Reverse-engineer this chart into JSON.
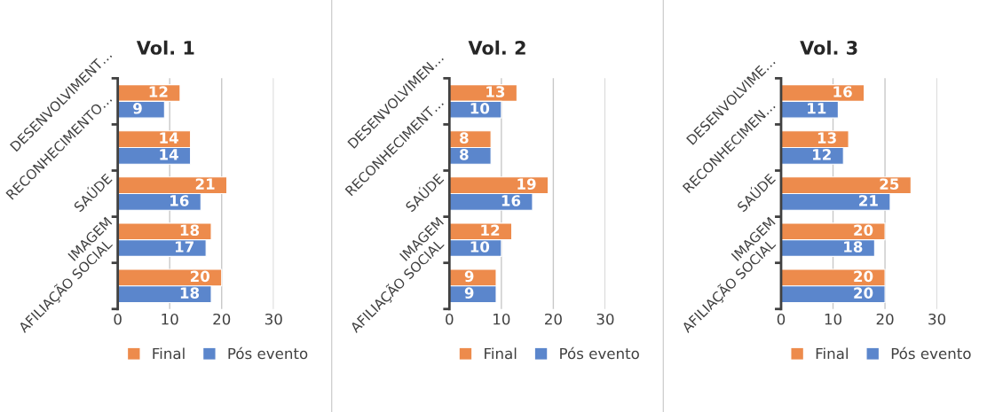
{
  "chart_data": [
    {
      "type": "bar",
      "orientation": "horizontal",
      "title": "Vol. 1",
      "categories": [
        "DESENVOLVIMENT…",
        "RECONHECIMENTO…",
        "SAÚDE",
        "IMAGEM",
        "AFILIAÇÃO SOCIAL"
      ],
      "series": [
        {
          "name": "Final",
          "color": "#ed8b4c",
          "values": [
            12,
            14,
            21,
            18,
            20
          ]
        },
        {
          "name": "Pós evento",
          "color": "#5b86cc",
          "values": [
            9,
            14,
            16,
            17,
            18
          ]
        }
      ],
      "xlim": [
        0,
        30
      ],
      "xticks": [
        0,
        10,
        20,
        30
      ],
      "grid": "x",
      "legend": "bottom",
      "data_labels": true
    },
    {
      "type": "bar",
      "orientation": "horizontal",
      "title": "Vol. 2",
      "categories": [
        "DESENVOLVIMEN…",
        "RECONHECIMENT…",
        "SAÚDE",
        "IMAGEM",
        "AFILIAÇÃO SOCIAL"
      ],
      "series": [
        {
          "name": "Final",
          "color": "#ed8b4c",
          "values": [
            13,
            8,
            19,
            12,
            9
          ]
        },
        {
          "name": "Pós evento",
          "color": "#5b86cc",
          "values": [
            10,
            8,
            16,
            10,
            9
          ]
        }
      ],
      "xlim": [
        0,
        30
      ],
      "xticks": [
        0,
        10,
        20,
        30
      ],
      "grid": "x",
      "legend": "bottom",
      "data_labels": true
    },
    {
      "type": "bar",
      "orientation": "horizontal",
      "title": "Vol. 3",
      "categories": [
        "DESENVOLVIME…",
        "RECONHECIMEN…",
        "SAÚDE",
        "IMAGEM",
        "AFILIAÇÃO SOCIAL"
      ],
      "series": [
        {
          "name": "Final",
          "color": "#ed8b4c",
          "values": [
            16,
            13,
            25,
            20,
            20
          ]
        },
        {
          "name": "Pós evento",
          "color": "#5b86cc",
          "values": [
            11,
            12,
            21,
            18,
            20
          ]
        }
      ],
      "xlim": [
        0,
        30
      ],
      "xticks": [
        0,
        10,
        20,
        30
      ],
      "grid": "x",
      "legend": "bottom",
      "data_labels": true
    }
  ]
}
